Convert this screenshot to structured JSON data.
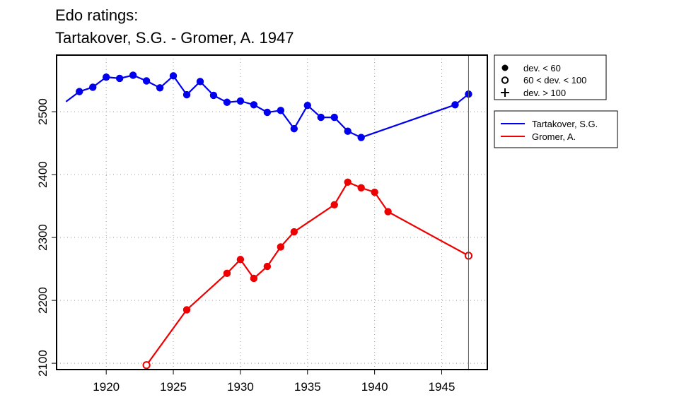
{
  "chart_data": {
    "type": "line",
    "title": "Edo ratings:",
    "subtitle": "Tartakover, S.G. - Gromer, A. 1947",
    "xlabel": "",
    "ylabel": "",
    "xlim": [
      1916.3,
      1948.4
    ],
    "ylim": [
      2090,
      2590
    ],
    "x_ticks": [
      1920,
      1925,
      1930,
      1935,
      1940,
      1945
    ],
    "y_ticks": [
      2100,
      2200,
      2300,
      2400,
      2500
    ],
    "grid": true,
    "reference_line_x": 1947,
    "marker_legend": [
      {
        "symbol": "filled-circle",
        "label": "dev. < 60"
      },
      {
        "symbol": "open-circle",
        "label": "60 < dev. < 100"
      },
      {
        "symbol": "plus",
        "label": "dev. > 100"
      }
    ],
    "legend_placement": "right-outside",
    "series": [
      {
        "name": "Tartakover, S.G.",
        "color": "#0000ee",
        "x": [
          1917,
          1918,
          1919,
          1920,
          1921,
          1922,
          1923,
          1924,
          1925,
          1926,
          1927,
          1928,
          1929,
          1930,
          1931,
          1932,
          1933,
          1934,
          1935,
          1936,
          1937,
          1938,
          1939,
          1946,
          1947
        ],
        "y": [
          2516,
          2532,
          2539,
          2555,
          2553,
          2558,
          2549,
          2538,
          2557,
          2527,
          2548,
          2526,
          2515,
          2517,
          2511,
          2499,
          2502,
          2473,
          2510,
          2491,
          2491,
          2469,
          2459,
          2511,
          2528
        ],
        "markers": [
          "none",
          "filled",
          "filled",
          "filled",
          "filled",
          "filled",
          "filled",
          "filled",
          "filled",
          "filled",
          "filled",
          "filled",
          "filled",
          "filled",
          "filled",
          "filled",
          "filled",
          "filled",
          "filled",
          "filled",
          "filled",
          "filled",
          "filled",
          "filled",
          "filled"
        ]
      },
      {
        "name": "Gromer, A.",
        "color": "#ee0000",
        "x": [
          1923,
          1926,
          1929,
          1930,
          1931,
          1932,
          1933,
          1934,
          1937,
          1938,
          1939,
          1940,
          1941,
          1947
        ],
        "y": [
          2097,
          2185,
          2243,
          2265,
          2235,
          2254,
          2285,
          2309,
          2352,
          2388,
          2379,
          2372,
          2341,
          2271
        ],
        "markers": [
          "open",
          "filled",
          "filled",
          "filled",
          "filled",
          "filled",
          "filled",
          "filled",
          "filled",
          "filled",
          "filled",
          "filled",
          "filled",
          "open"
        ]
      }
    ]
  }
}
